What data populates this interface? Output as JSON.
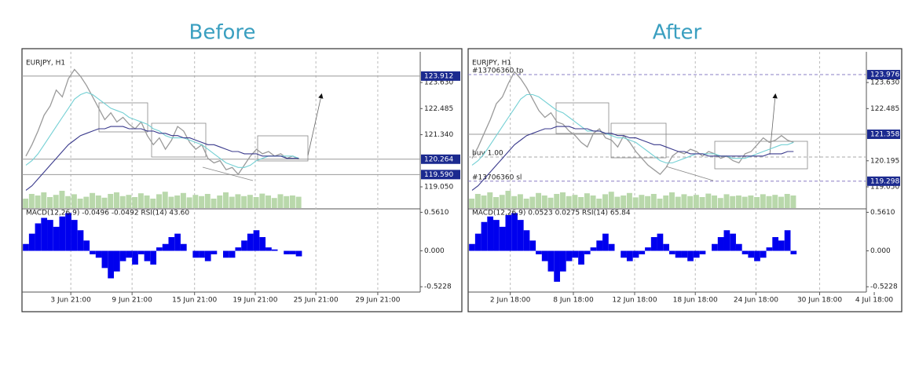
{
  "chart_data": [
    {
      "type": "line",
      "title": "Before",
      "symbol": "EURJPY, H1",
      "indicator_label": "MACD(12,26,9) -0.0496 -0.0492 RSI(14) 43.60",
      "xlim": [
        0,
        65
      ],
      "xticks": [
        {
          "value": 7.4,
          "label": "3 Jun 21:00"
        },
        {
          "value": 17.5,
          "label": "9 Jun 21:00"
        },
        {
          "value": 27.8,
          "label": "15 Jun 21:00"
        },
        {
          "value": 37.8,
          "label": "19 Jun 21:00"
        },
        {
          "value": 47.8,
          "label": "25 Jun 21:00"
        },
        {
          "value": 58,
          "label": "29 Jun 21:00"
        }
      ],
      "xgrid": true,
      "ylim": [
        118.12,
        124.77
      ],
      "yticks": [
        {
          "value": 123.63,
          "label": "123.630"
        },
        122.485,
        {
          "value": 121.34,
          "label": "121.340"
        },
        {
          "value": 119.05,
          "label": "119.050"
        }
      ],
      "series": [
        {
          "color": "#9a9a9a",
          "values": [
            120.4,
            120.9,
            121.5,
            122.2,
            122.6,
            123.3,
            123.0,
            123.8,
            124.2,
            123.9,
            123.5,
            123.0,
            122.5,
            122.0,
            122.3,
            121.9,
            122.1,
            121.8,
            121.6,
            121.9,
            121.3,
            120.9,
            121.2,
            120.7,
            121.1,
            121.7,
            121.5,
            121.0,
            120.7,
            120.9,
            120.3,
            120.1,
            120.2,
            119.8,
            119.9,
            119.6,
            120.0,
            120.4,
            120.7,
            120.5,
            120.6,
            120.4,
            120.5,
            120.3,
            120.4,
            120.26
          ]
        },
        {
          "color": "#74d0d4",
          "values": [
            120.0,
            120.2,
            120.5,
            120.9,
            121.3,
            121.7,
            122.1,
            122.5,
            122.9,
            123.1,
            123.2,
            123.1,
            122.9,
            122.7,
            122.5,
            122.4,
            122.3,
            122.1,
            122.0,
            121.9,
            121.8,
            121.6,
            121.5,
            121.3,
            121.2,
            121.2,
            121.2,
            121.1,
            121.0,
            120.9,
            120.7,
            120.5,
            120.3,
            120.1,
            120.0,
            119.9,
            119.9,
            120.0,
            120.2,
            120.3,
            120.4,
            120.4,
            120.4,
            120.4,
            120.4,
            120.3
          ]
        },
        {
          "color": "#3a3a8c",
          "values": [
            118.9,
            119.1,
            119.4,
            119.7,
            120.0,
            120.3,
            120.6,
            120.9,
            121.1,
            121.3,
            121.4,
            121.5,
            121.6,
            121.6,
            121.7,
            121.7,
            121.7,
            121.6,
            121.6,
            121.6,
            121.5,
            121.5,
            121.4,
            121.4,
            121.3,
            121.3,
            121.2,
            121.2,
            121.1,
            121.0,
            120.9,
            120.9,
            120.8,
            120.7,
            120.6,
            120.6,
            120.5,
            120.5,
            120.5,
            120.4,
            120.4,
            120.4,
            120.4,
            120.3,
            120.3,
            120.3
          ]
        }
      ],
      "price_lines": [
        {
          "value": 123.912,
          "color": "#999999",
          "style": "solid",
          "box": true
        },
        {
          "value": 120.264,
          "color": "#999999",
          "style": "solid",
          "box": true
        },
        {
          "value": 119.59,
          "label": "119.590",
          "color": "#999999",
          "style": "solid",
          "box": true
        }
      ],
      "volume": {
        "color": "#b9d8ab",
        "ylim": [
          0,
          100
        ],
        "values": [
          30,
          45,
          40,
          50,
          35,
          42,
          55,
          38,
          44,
          30,
          36,
          48,
          40,
          33,
          45,
          50,
          38,
          42,
          35,
          47,
          40,
          30,
          44,
          52,
          36,
          40,
          48,
          34,
          42,
          38,
          45,
          30,
          40,
          50,
          36,
          44,
          38,
          42,
          35,
          46,
          40,
          32,
          44,
          38,
          40,
          36
        ]
      },
      "macd": {
        "color": "#0000ee",
        "ylim": [
          -0.6,
          0.6
        ],
        "yticks": [
          {
            "value": 0.561,
            "label": "0.5610"
          },
          {
            "value": 0,
            "label": "0.000"
          },
          -0.5228
        ],
        "values": [
          0.1,
          0.25,
          0.4,
          0.48,
          0.45,
          0.35,
          0.5,
          0.55,
          0.45,
          0.3,
          0.15,
          -0.05,
          -0.1,
          -0.25,
          -0.4,
          -0.3,
          -0.15,
          -0.1,
          -0.2,
          -0.05,
          -0.15,
          -0.2,
          0.05,
          0.1,
          0.2,
          0.25,
          0.1,
          0,
          -0.1,
          -0.1,
          -0.15,
          -0.05,
          0,
          -0.1,
          -0.1,
          0.05,
          0.15,
          0.25,
          0.3,
          0.2,
          0.05,
          0.02,
          0,
          -0.05,
          -0.05,
          -0.08
        ]
      }
    },
    {
      "type": "line",
      "title": "After",
      "symbol": "EURJPY, H1",
      "indicator_label": "MACD(12,26,9) 0.0523 0.0275 RSI(14) 65.84",
      "xlim": [
        0,
        65
      ],
      "xticks": [
        {
          "value": 6.3,
          "label": "2 Jun 18:00"
        },
        {
          "value": 16.7,
          "label": "8 Jun 18:00"
        },
        {
          "value": 26.8,
          "label": "12 Jun 18:00"
        },
        {
          "value": 36.8,
          "label": "18 Jun 18:00"
        },
        {
          "value": 46.8,
          "label": "24 Jun 18:00"
        },
        {
          "value": 57.3,
          "label": "30 Jun 18:00"
        },
        {
          "value": 66.3,
          "label": "4 Jul 18:00"
        }
      ],
      "xgrid": true,
      "ylim": [
        118.12,
        124.77
      ],
      "yticks": [
        {
          "value": 123.63,
          "label": "123.630"
        },
        122.485,
        120.195,
        {
          "value": 119.05,
          "label": "119.050"
        }
      ],
      "series": [
        {
          "color": "#9a9a9a",
          "values": [
            120.3,
            120.8,
            121.4,
            122.0,
            122.7,
            123.0,
            123.6,
            124.1,
            123.8,
            123.4,
            122.9,
            122.4,
            122.1,
            122.3,
            121.9,
            121.8,
            121.5,
            121.3,
            121.0,
            120.8,
            121.4,
            121.6,
            121.2,
            121.1,
            120.8,
            121.3,
            121.0,
            120.6,
            120.3,
            120.0,
            119.8,
            119.6,
            119.9,
            120.4,
            120.6,
            120.5,
            120.7,
            120.6,
            120.4,
            120.6,
            120.5,
            120.3,
            120.4,
            120.2,
            120.1,
            120.5,
            120.6,
            120.9,
            121.2,
            121.0,
            121.1,
            121.3,
            121.1,
            121.0
          ]
        },
        {
          "color": "#74d0d4",
          "values": [
            120.0,
            120.2,
            120.5,
            120.9,
            121.3,
            121.7,
            122.1,
            122.5,
            122.9,
            123.1,
            123.1,
            123.0,
            122.8,
            122.6,
            122.4,
            122.3,
            122.1,
            121.9,
            121.7,
            121.5,
            121.5,
            121.5,
            121.4,
            121.3,
            121.2,
            121.2,
            121.1,
            121.0,
            120.8,
            120.6,
            120.4,
            120.2,
            120.1,
            120.1,
            120.2,
            120.3,
            120.4,
            120.5,
            120.5,
            120.5,
            120.5,
            120.4,
            120.4,
            120.3,
            120.3,
            120.3,
            120.4,
            120.5,
            120.6,
            120.7,
            120.8,
            120.9,
            120.9,
            121.0
          ]
        },
        {
          "color": "#3a3a8c",
          "values": [
            118.9,
            119.1,
            119.4,
            119.7,
            120.0,
            120.3,
            120.6,
            120.9,
            121.1,
            121.3,
            121.4,
            121.5,
            121.6,
            121.6,
            121.7,
            121.7,
            121.7,
            121.6,
            121.6,
            121.6,
            121.5,
            121.5,
            121.4,
            121.4,
            121.3,
            121.3,
            121.2,
            121.2,
            121.1,
            121.0,
            120.9,
            120.9,
            120.8,
            120.7,
            120.6,
            120.6,
            120.5,
            120.5,
            120.5,
            120.4,
            120.4,
            120.4,
            120.4,
            120.4,
            120.4,
            120.4,
            120.4,
            120.4,
            120.4,
            120.5,
            120.5,
            120.5,
            120.6,
            120.6
          ]
        }
      ],
      "price_lines": [
        {
          "value": 123.976,
          "text": "#13706360 tp",
          "color": "#8a7fc4",
          "style": "dashed",
          "box": true
        },
        {
          "value": 121.358,
          "color": "#999999",
          "style": "solid",
          "box": true
        },
        {
          "value": 120.36,
          "text": "buy 1.00",
          "color": "#aaaaaa",
          "style": "dashed",
          "box": false
        },
        {
          "value": 119.298,
          "text": "#13706360 sl",
          "color": "#8a7fc4",
          "style": "dashed",
          "box": true
        }
      ],
      "volume": {
        "color": "#b9d8ab",
        "ylim": [
          0,
          100
        ],
        "values": [
          30,
          45,
          40,
          50,
          35,
          42,
          55,
          38,
          44,
          30,
          36,
          48,
          40,
          33,
          45,
          50,
          38,
          42,
          35,
          47,
          40,
          30,
          44,
          52,
          36,
          40,
          48,
          34,
          42,
          38,
          45,
          30,
          40,
          50,
          36,
          44,
          38,
          42,
          35,
          46,
          40,
          32,
          44,
          38,
          40,
          36,
          40,
          35,
          44,
          38,
          42,
          36,
          45,
          40
        ]
      },
      "macd": {
        "color": "#0000ee",
        "ylim": [
          -0.6,
          0.6
        ],
        "yticks": [
          {
            "value": 0.561,
            "label": "0.5610"
          },
          {
            "value": 0,
            "label": "0.000"
          },
          -0.5228
        ],
        "values": [
          0.1,
          0.25,
          0.42,
          0.5,
          0.45,
          0.35,
          0.52,
          0.55,
          0.45,
          0.3,
          0.15,
          -0.05,
          -0.15,
          -0.3,
          -0.45,
          -0.3,
          -0.15,
          -0.1,
          -0.2,
          -0.05,
          0.05,
          0.15,
          0.25,
          0.1,
          0,
          -0.1,
          -0.15,
          -0.1,
          -0.05,
          0.05,
          0.2,
          0.25,
          0.1,
          -0.05,
          -0.1,
          -0.1,
          -0.15,
          -0.1,
          -0.05,
          0,
          0.1,
          0.2,
          0.3,
          0.25,
          0.1,
          -0.05,
          -0.1,
          -0.15,
          -0.1,
          0.05,
          0.2,
          0.15,
          0.3,
          -0.05
        ]
      }
    }
  ]
}
